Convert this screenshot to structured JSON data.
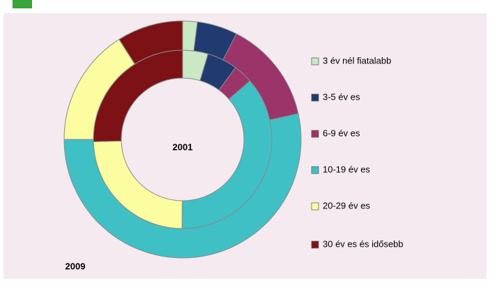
{
  "chart_data": {
    "type": "donut",
    "categories": [
      "3 év nél fiatalabb",
      "3-5 év es",
      "6-9 év es",
      "10-19 év es",
      "20-29 év es",
      "30 év es és idősebb"
    ],
    "colors": [
      "#c9e8c3",
      "#1f3b70",
      "#9b3468",
      "#3fc0c5",
      "#fcfca0",
      "#7d1216"
    ],
    "series": [
      {
        "name": "2001",
        "values": [
          4.6,
          5.5,
          3.5,
          36.5,
          24.5,
          25.4
        ]
      },
      {
        "name": "2009",
        "values": [
          2,
          5.5,
          14,
          53.5,
          16,
          9
        ]
      }
    ]
  }
}
